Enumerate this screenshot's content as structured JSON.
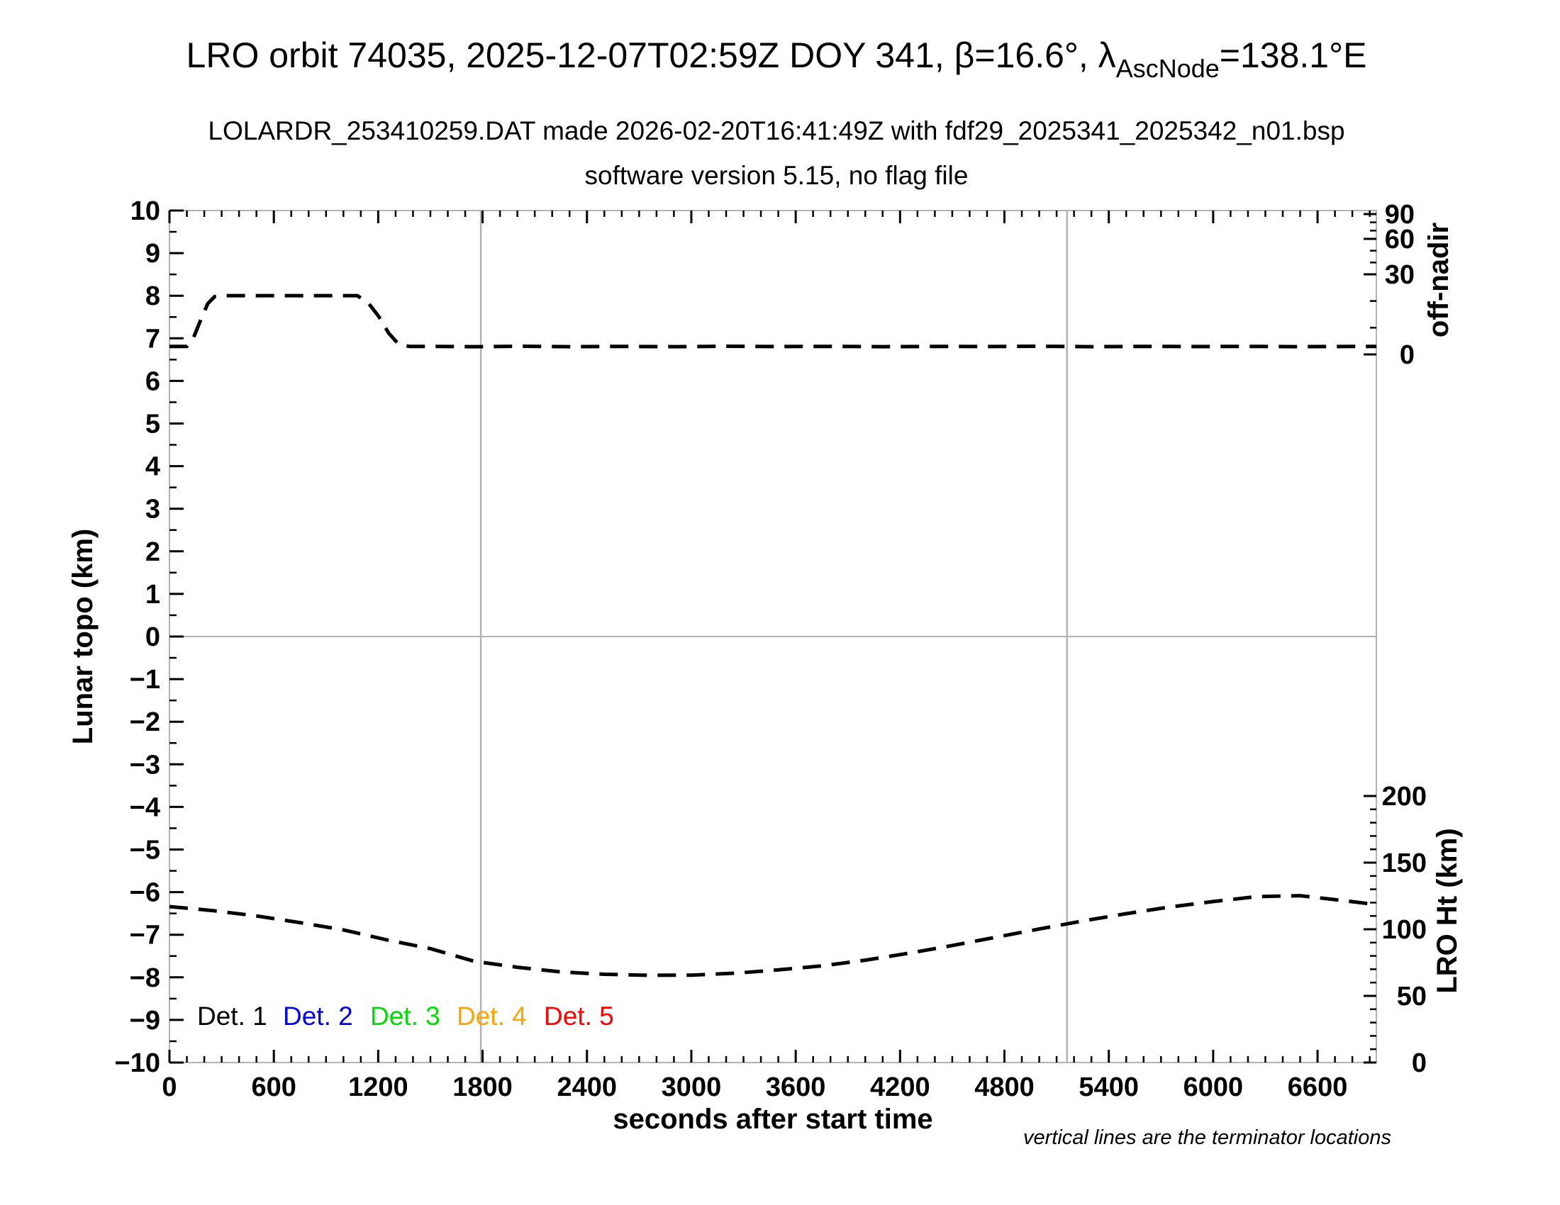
{
  "title": {
    "prefix": "LRO orbit 74035, 2025-12-07T02:59Z DOY 341, β=16.6°, λ",
    "lambda_subscript": "AscNode",
    "suffix": "=138.1°E"
  },
  "subtitle_file": "LOLARDR_253410259.DAT made 2026-02-20T16:41:49Z with fdf29_2025341_2025342_n01.bsp",
  "subtitle_version": "software version 5.15, no flag file",
  "footnote": "vertical lines are the terminator locations",
  "axes": {
    "x": {
      "label": "seconds after start time",
      "tick_values": [
        0,
        600,
        1200,
        1800,
        2400,
        3000,
        3600,
        4200,
        4800,
        5400,
        6000,
        6600
      ],
      "tick_labels": [
        "0",
        "600",
        "1200",
        "1800",
        "2400",
        "3000",
        "3600",
        "4200",
        "4800",
        "5400",
        "6000",
        "6600"
      ],
      "minor_step_s": 100,
      "range_s": [
        0,
        6938
      ]
    },
    "y_left": {
      "label": "Lunar topo (km)",
      "tick_values": [
        10,
        9,
        8,
        7,
        6,
        5,
        4,
        3,
        2,
        1,
        0,
        -1,
        -2,
        -3,
        -4,
        -5,
        -6,
        -7,
        -8,
        -9,
        -10
      ],
      "tick_labels": [
        "10",
        "9",
        "8",
        "7",
        "6",
        "5",
        "4",
        "3",
        "2",
        "1",
        "0",
        "−1",
        "−2",
        "−3",
        "−4",
        "−5",
        "−6",
        "−7",
        "−8",
        "−9",
        "−10"
      ],
      "minor_step": 0.5,
      "range": [
        -10,
        10
      ]
    },
    "y_right_top": {
      "label": "off-nadir",
      "units": "deg",
      "tick_values": [
        90,
        60,
        30,
        0
      ],
      "tick_labels": [
        "90",
        "60",
        "30",
        "0"
      ],
      "minor_tick_values": [
        80,
        70,
        50,
        40,
        20,
        10
      ],
      "scale": "nonlinear-compressed-toward-90"
    },
    "y_right_bottom": {
      "label": "LRO Ht (km)",
      "units": "km",
      "tick_values": [
        200,
        150,
        100,
        50,
        0
      ],
      "tick_labels": [
        "200",
        "150",
        "100",
        "50",
        "0"
      ],
      "minor_step_km": 10,
      "range_km": [
        0,
        200
      ]
    }
  },
  "legend": [
    {
      "label": "Det. 1",
      "color": "#000000"
    },
    {
      "label": "Det. 2",
      "color": "#0000ee"
    },
    {
      "label": "Det. 3",
      "color": "#00dd00"
    },
    {
      "label": "Det. 4",
      "color": "#ffa500"
    },
    {
      "label": "Det. 5",
      "color": "#ff0000"
    }
  ],
  "chart_data": {
    "type": "line",
    "title": "LRO orbit 74035 LOLA RDR summary",
    "xlabel": "seconds after start time",
    "x_range_s": [
      0,
      6938
    ],
    "grid": "terminator vertical lines + zero horizontal line only",
    "legend_position": "inside bottom-left",
    "terminator_lines_s": [
      1790,
      5160
    ],
    "zero_line_lunar_topo_km": 0,
    "series": [
      {
        "name": "spacecraft off-nadir angle",
        "axis": "y_right_top",
        "units": "deg",
        "style": "dashed",
        "color": "#000000",
        "x_s": [
          0,
          60,
          100,
          140,
          180,
          220,
          260,
          300,
          500,
          700,
          900,
          1000,
          1080,
          1140,
          1200,
          1260,
          1320,
          1380,
          1500,
          1750,
          2000,
          2300,
          2600,
          2900,
          3200,
          3500,
          3800,
          4100,
          4400,
          4700,
          5000,
          5300,
          5600,
          5900,
          6200,
          6500,
          6800,
          6938
        ],
        "values_deg": [
          3.0,
          3.0,
          3.0,
          6.5,
          13.0,
          19.0,
          21.7,
          22.0,
          22.0,
          22.0,
          22.0,
          22.0,
          22.0,
          19.5,
          14.5,
          8.0,
          3.6,
          3.0,
          3.0,
          2.9,
          3.05,
          2.9,
          3.0,
          2.9,
          3.05,
          2.95,
          3.0,
          2.9,
          3.0,
          2.95,
          3.05,
          2.9,
          3.0,
          2.95,
          3.0,
          2.9,
          3.0,
          3.0
        ]
      },
      {
        "name": "LRO height above surface",
        "axis": "y_right_bottom",
        "units": "km",
        "style": "dashed",
        "color": "#000000",
        "x_s": [
          0,
          250,
          500,
          750,
          1000,
          1250,
          1500,
          1750,
          2000,
          2250,
          2500,
          2750,
          3000,
          3250,
          3500,
          3750,
          4000,
          4250,
          4500,
          4750,
          5000,
          5250,
          5500,
          5750,
          6000,
          6250,
          6500,
          6750,
          6938
        ],
        "values_km": [
          117.0,
          114.0,
          110.0,
          105.0,
          99.5,
          92.0,
          85.5,
          76.0,
          71.5,
          68.0,
          66.2,
          65.5,
          65.6,
          67.0,
          69.5,
          72.5,
          76.8,
          82.0,
          87.8,
          94.0,
          100.2,
          106.2,
          111.7,
          116.7,
          120.8,
          124.5,
          125.2,
          121.5,
          118.5
        ]
      }
    ]
  },
  "colors": {
    "axis_gray": "#b2b2b2",
    "curve": "#000000",
    "background": "#ffffff"
  }
}
